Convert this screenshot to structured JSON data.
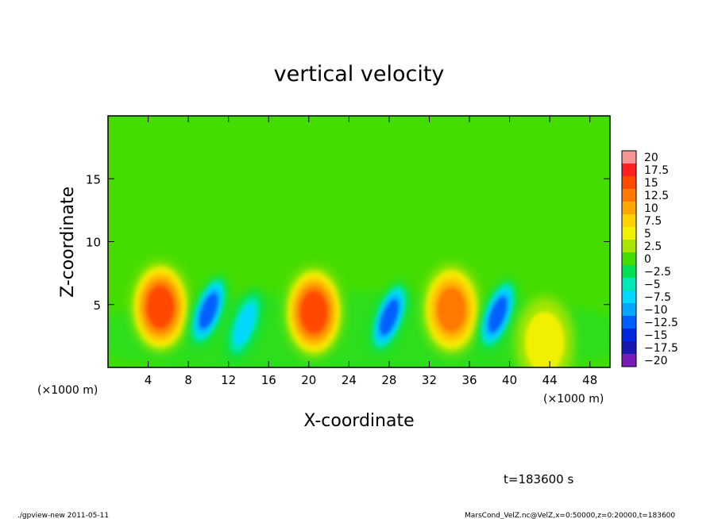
{
  "chart_data": {
    "type": "heatmap",
    "title": "vertical velocity",
    "xlabel": "X-coordinate",
    "ylabel": "Z-coordinate",
    "x_unit": "(×1000 m)",
    "y_unit": "(×1000 m)",
    "xlim": [
      0,
      50
    ],
    "ylim": [
      0,
      20
    ],
    "xticks": [
      "4",
      "8",
      "12",
      "16",
      "20",
      "24",
      "28",
      "32",
      "36",
      "40",
      "44",
      "48"
    ],
    "yticks": [
      "5",
      "10",
      "15"
    ],
    "colorbar": {
      "labels": [
        "20",
        "17.5",
        "15",
        "12.5",
        "10",
        "7.5",
        "5",
        "2.5",
        "0",
        "−2.5",
        "−5",
        "−7.5",
        "−10",
        "−12.5",
        "−15",
        "−17.5",
        "−20"
      ],
      "colors": [
        "#f79494",
        "#ff2020",
        "#ff4a00",
        "#ff7800",
        "#ffa600",
        "#ffd200",
        "#f0f000",
        "#a8e600",
        "#44dd00",
        "#00e050",
        "#00e8b8",
        "#00d8ff",
        "#00a8ff",
        "#0060ff",
        "#0028e0",
        "#1818b0",
        "#7a1ab8"
      ]
    },
    "features": [
      {
        "x_center": 5.2,
        "z_center": 4.8,
        "peak_w": 14,
        "kind": "updraft"
      },
      {
        "x_center": 10.0,
        "z_center": 4.5,
        "peak_w": -12,
        "kind": "downdraft"
      },
      {
        "x_center": 13.6,
        "z_center": 3.4,
        "peak_w": -8,
        "kind": "downdraft"
      },
      {
        "x_center": 20.5,
        "z_center": 4.4,
        "peak_w": 15,
        "kind": "updraft"
      },
      {
        "x_center": 28.0,
        "z_center": 4.0,
        "peak_w": -12,
        "kind": "downdraft"
      },
      {
        "x_center": 34.2,
        "z_center": 4.6,
        "peak_w": 13,
        "kind": "updraft"
      },
      {
        "x_center": 38.8,
        "z_center": 4.2,
        "peak_w": -13,
        "kind": "downdraft"
      },
      {
        "x_center": 43.5,
        "z_center": 2.0,
        "peak_w": 4,
        "kind": "updraft"
      }
    ],
    "grid": false,
    "colorbar_position": "right"
  },
  "annotations": {
    "time": "t=183600 s",
    "footer_left": "./gpview-new  2011-05-11",
    "footer_right": "MarsCond_VelZ.nc@VelZ,x=0:50000,z=0:20000,t=183600"
  }
}
